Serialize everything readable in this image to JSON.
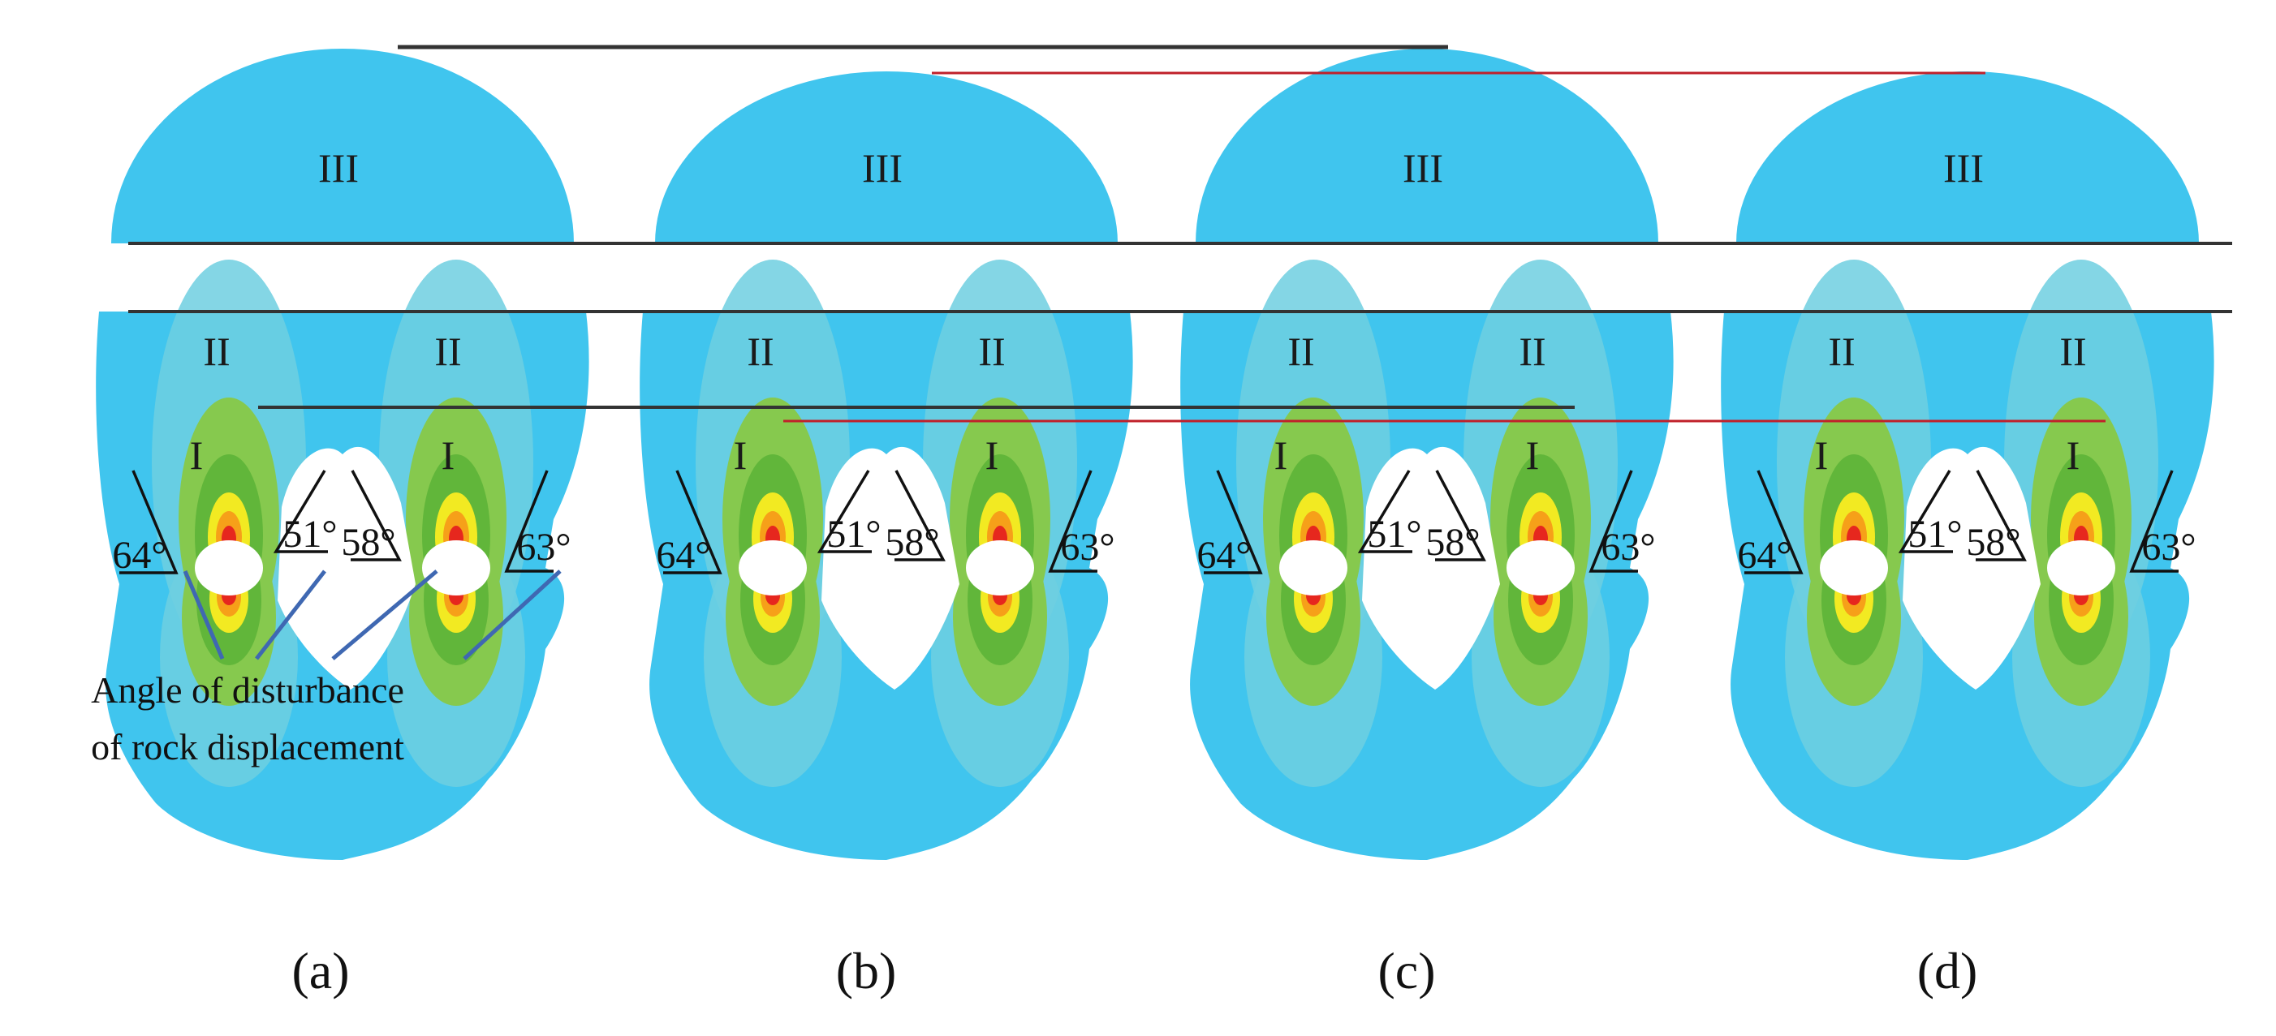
{
  "zones": {
    "top": "III",
    "middle": "II",
    "inner": "I"
  },
  "colors": {
    "outer": "#40c5ee",
    "band": "#6fcfe0",
    "green_light": "#86c94e",
    "green": "#61b63a",
    "yellow": "#f2ea22",
    "orange": "#f6a019",
    "red": "#e6271e",
    "line_dark": "#333333",
    "line_red": "#c0202a",
    "pointer": "#3f68b2"
  },
  "panels": [
    {
      "caption": "(a)",
      "angles": [
        "64°",
        "51°",
        "58°",
        "63°"
      ]
    },
    {
      "caption": "(b)",
      "angles": [
        "64°",
        "51°",
        "58°",
        "63°"
      ]
    },
    {
      "caption": "(c)",
      "angles": [
        "64°",
        "51°",
        "58°",
        "63°"
      ]
    },
    {
      "caption": "(d)",
      "angles": [
        "64°",
        "51°",
        "58°",
        "63°"
      ]
    }
  ],
  "annotation": {
    "line1": "Angle of disturbance",
    "line2": "of rock displacement"
  }
}
